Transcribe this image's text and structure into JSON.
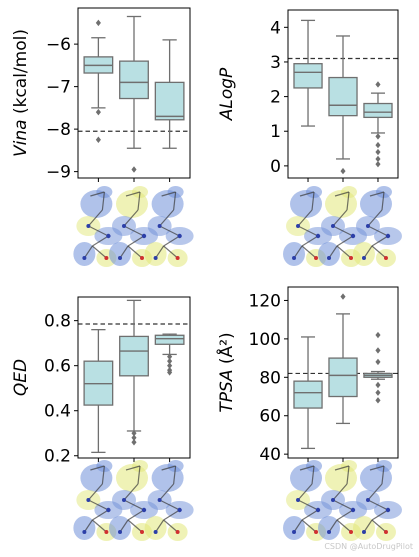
{
  "chart_data": [
    {
      "type": "box",
      "ylabel": "Vina (kcal/mol)",
      "ylim": [
        -9.15,
        -5.15
      ],
      "yticks": [
        -9,
        -8,
        -7,
        -6
      ],
      "reference_line": -8.05,
      "boxes": [
        {
          "whislo": -7.5,
          "q1": -6.68,
          "med": -6.5,
          "q3": -6.3,
          "whishi": -5.85,
          "fliers": [
            -5.5,
            -7.6,
            -8.25
          ]
        },
        {
          "whislo": -8.45,
          "q1": -7.28,
          "med": -6.9,
          "q3": -6.4,
          "whishi": -5.35,
          "fliers": [
            -8.95
          ]
        },
        {
          "whislo": -8.45,
          "q1": -7.78,
          "med": -7.7,
          "q3": -6.9,
          "whishi": -5.9,
          "fliers": []
        }
      ]
    },
    {
      "type": "box",
      "ylabel": "ALogP",
      "ylim": [
        -0.35,
        4.5
      ],
      "yticks": [
        0,
        1,
        2,
        3,
        4
      ],
      "reference_line": 3.1,
      "boxes": [
        {
          "whislo": 1.15,
          "q1": 2.25,
          "med": 2.7,
          "q3": 2.95,
          "whishi": 4.2,
          "fliers": []
        },
        {
          "whislo": 0.2,
          "q1": 1.45,
          "med": 1.75,
          "q3": 2.55,
          "whishi": 3.75,
          "fliers": [
            -0.15
          ]
        },
        {
          "whislo": 0.95,
          "q1": 1.4,
          "med": 1.55,
          "q3": 1.8,
          "whishi": 2.1,
          "fliers": [
            2.35,
            0.85,
            0.6,
            0.4,
            0.2,
            0.05
          ]
        }
      ]
    },
    {
      "type": "box",
      "ylabel": "QED",
      "ylim": [
        0.19,
        0.905
      ],
      "yticks": [
        0.2,
        0.4,
        0.6,
        0.8
      ],
      "reference_line": 0.785,
      "boxes": [
        {
          "whislo": 0.215,
          "q1": 0.425,
          "med": 0.52,
          "q3": 0.62,
          "whishi": 0.76,
          "fliers": []
        },
        {
          "whislo": 0.31,
          "q1": 0.555,
          "med": 0.665,
          "q3": 0.73,
          "whishi": 0.89,
          "fliers": [
            0.3,
            0.28,
            0.26
          ]
        },
        {
          "whislo": 0.65,
          "q1": 0.695,
          "med": 0.72,
          "q3": 0.735,
          "whishi": 0.74,
          "fliers": [
            0.64,
            0.62,
            0.6,
            0.58,
            0.57
          ]
        }
      ]
    },
    {
      "type": "box",
      "ylabel": "TPSA (Å²)",
      "ylim": [
        38,
        127
      ],
      "yticks": [
        40,
        60,
        80,
        100,
        120
      ],
      "reference_line": 82,
      "boxes": [
        {
          "whislo": 43,
          "q1": 64,
          "med": 72,
          "q3": 78,
          "whishi": 101,
          "fliers": []
        },
        {
          "whislo": 56,
          "q1": 70,
          "med": 81,
          "q3": 90,
          "whishi": 113,
          "fliers": [
            122
          ]
        },
        {
          "whislo": 79,
          "q1": 80,
          "med": 81,
          "q3": 82,
          "whishi": 83,
          "fliers": [
            102,
            94,
            88,
            76,
            72,
            68
          ]
        }
      ]
    }
  ],
  "colors": {
    "box_fill": "#b9e0e3",
    "box_edge": "#6f6f6f",
    "median": "#6f6f6f",
    "flier": "#6f6f6f",
    "ref_line": "#333333",
    "mol_blue": "#7090d8",
    "mol_yellow": "#e2e87a",
    "mol_atom_n": "#2c3fa8",
    "mol_atom_o": "#d03030"
  },
  "watermark": "CSDN @AutoDrugPilot"
}
